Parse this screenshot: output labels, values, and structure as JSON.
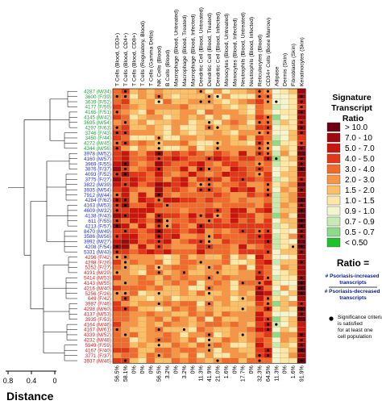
{
  "chart_data": {
    "type": "heatmap",
    "title": "",
    "columns": [
      "T Cells (Blood, CD3+)",
      "T Cells (Blood, CD4+)",
      "T Cells (Blood, CD8+)",
      "T Cells (Regulatory, Blood)",
      "T Cells (Gamma Delta)",
      "NK Cells (Blood)",
      "B Cells (Blood)",
      "Macrophage (Blood, Untreated)",
      "Macrophage (Blood, Treated)",
      "Macrophage (Blood, Infected)",
      "Dendritic Cell (Blood, Untreated)",
      "Dendritic Cell (Blood, Treated)",
      "Dendritic Cell (Blood, Infected)",
      "Monocytes (Blood, Untreated)",
      "Monocytes (Blood, Infected)",
      "Neutrophils (Blood, Untreated)",
      "Neutrophils (Blood, Infected)",
      "Reticulocytes (Blood)",
      "CD34+ Cells (Bone Marrow)",
      "Adipose",
      "Dermis (Skin)",
      "Fibroblasts (Skin)",
      "Keratinocytes (Skin)"
    ],
    "column_percentages": [
      "56.5%",
      "58.1%",
      "0%",
      "0%",
      "0%",
      "56.5%",
      "3.2%",
      "0%",
      "3.2%",
      "0%",
      "11.3%",
      "41.9%",
      "21.0%",
      "1.6%",
      "0%",
      "17.7%",
      "0%",
      "32.3%",
      "64.5%",
      "11.3%",
      "0%",
      "1.6%",
      "91.9%"
    ],
    "rows": [
      {
        "label": "4287 (M/34)",
        "group": "green"
      },
      {
        "label": "3600 (F/39)",
        "group": "green"
      },
      {
        "label": "3639 (F/52)",
        "group": "green"
      },
      {
        "label": "4177 (F/59)",
        "group": "green"
      },
      {
        "label": "4165 (F/51)",
        "group": "green"
      },
      {
        "label": "4145 (M/42)",
        "group": "green"
      },
      {
        "label": "3695 (M/54)",
        "group": "green"
      },
      {
        "label": "4297 (F/63)",
        "group": "green"
      },
      {
        "label": "3746 (F/43)",
        "group": "green"
      },
      {
        "label": "3450 (F/44)",
        "group": "green"
      },
      {
        "label": "4272 (M/45)",
        "group": "green"
      },
      {
        "label": "4344 (M/56)",
        "group": "green"
      },
      {
        "label": "3978 (M/52)",
        "group": "blue"
      },
      {
        "label": "4160 (M/57)",
        "group": "blue"
      },
      {
        "label": "3969 (F/55)",
        "group": "blue"
      },
      {
        "label": "3876 (F/37)",
        "group": "blue"
      },
      {
        "label": "4093 (F/52)",
        "group": "blue"
      },
      {
        "label": "3775 (F/27)",
        "group": "blue"
      },
      {
        "label": "3822 (M/39)",
        "group": "blue"
      },
      {
        "label": "3935 (M/54)",
        "group": "blue"
      },
      {
        "label": "7912 (M/44)",
        "group": "blue"
      },
      {
        "label": "4284 (F/62)",
        "group": "blue"
      },
      {
        "label": "4163 (M/53)",
        "group": "blue"
      },
      {
        "label": "4609 (M/32)",
        "group": "blue"
      },
      {
        "label": "4138 (F/43)",
        "group": "blue"
      },
      {
        "label": "611 (F/55)",
        "group": "blue"
      },
      {
        "label": "4213 (F/57)",
        "group": "blue"
      },
      {
        "label": "8470 (M/49)",
        "group": "blue"
      },
      {
        "label": "3586 (M/56)",
        "group": "blue"
      },
      {
        "label": "3992 (M/27)",
        "group": "blue"
      },
      {
        "label": "4208 (F/54)",
        "group": "blue"
      },
      {
        "label": "5331 (M/43)",
        "group": "blue"
      },
      {
        "label": "4296 (F/42)",
        "group": "red"
      },
      {
        "label": "4298 (F/26)",
        "group": "red"
      },
      {
        "label": "5252 (F/27)",
        "group": "red"
      },
      {
        "label": "4191 (M/29)",
        "group": "red"
      },
      {
        "label": "5414 (M/53)",
        "group": "red"
      },
      {
        "label": "4143 (M/55)",
        "group": "red"
      },
      {
        "label": "4216 (M/40)",
        "group": "red"
      },
      {
        "label": "5256 (F/26)",
        "group": "red"
      },
      {
        "label": "649 (F/42)",
        "group": "red"
      },
      {
        "label": "3987 (F/46)",
        "group": "red"
      },
      {
        "label": "4298 (M/60)",
        "group": "red"
      },
      {
        "label": "4137 (M/53)",
        "group": "red"
      },
      {
        "label": "3935 (F/53)",
        "group": "red"
      },
      {
        "label": "4164 (M/46)",
        "group": "red"
      },
      {
        "label": "4167 (M/61)",
        "group": "red"
      },
      {
        "label": "4339 (M/52)",
        "group": "red"
      },
      {
        "label": "4232 (M/48)",
        "group": "red"
      },
      {
        "label": "5949 (F/59)",
        "group": "red"
      },
      {
        "label": "4167 (F/40)",
        "group": "red"
      },
      {
        "label": "3771 (F/37)",
        "group": "red"
      },
      {
        "label": "3937 (M/46)",
        "group": "red"
      }
    ],
    "values_note": "",
    "legend": {
      "title": "Signature Transcript Ratio",
      "entries": [
        {
          "label": "> 10.0",
          "color": "#6b0013"
        },
        {
          "label": "7.0 - 10",
          "color": "#9c0a10"
        },
        {
          "label": "5.0 - 7.0",
          "color": "#c8160e"
        },
        {
          "label": "4.0 - 5.0",
          "color": "#e2381a"
        },
        {
          "label": "3.0 - 4.0",
          "color": "#ef6a2d"
        },
        {
          "label": "2.0 - 3.0",
          "color": "#f59545"
        },
        {
          "label": "1.5 - 2.0",
          "color": "#fbbf68"
        },
        {
          "label": "1.0 - 1.5",
          "color": "#fde7a6"
        },
        {
          "label": "0.9 - 1.0",
          "color": "#f2f5d0"
        },
        {
          "label": "0.7 - 0.9",
          "color": "#c9e9b3"
        },
        {
          "label": "0.5 - 0.7",
          "color": "#8fd98a"
        },
        {
          "label": "< 0.50",
          "color": "#22c02c"
        }
      ],
      "ratio_title": "Ratio =",
      "ratio_numerator": "# Psoriasis-increased transcripts",
      "ratio_denominator": "# Psoriasis-decreased transcripts",
      "significance_note": "Significance criteria is satisfied for at least one cell population"
    },
    "dendrogram_axis": {
      "label": "Distance",
      "ticks": [
        "0.8",
        "0.4",
        "0"
      ]
    },
    "colors": {
      "green": "#22a63a",
      "blue": "#2233cc",
      "red": "#d42020",
      "navy": "#0b1f8c"
    }
  }
}
